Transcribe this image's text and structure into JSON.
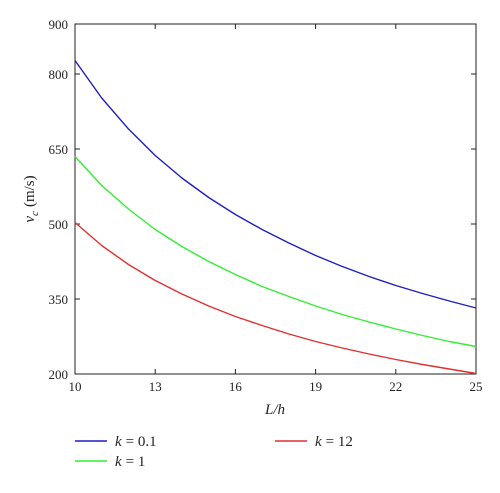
{
  "chart_data": {
    "type": "line",
    "xlabel": "L/h",
    "ylabel_var": "v",
    "ylabel_sub": "c",
    "ylabel_unit": "(m/s)",
    "xlim": [
      10,
      25
    ],
    "ylim": [
      200,
      900
    ],
    "xticks": [
      10,
      13,
      16,
      19,
      22,
      25
    ],
    "yticks": [
      200,
      350,
      500,
      650,
      800,
      900
    ],
    "grid": false,
    "legend_placement": "bottom",
    "x": [
      10,
      11,
      12,
      13,
      14,
      15,
      16,
      17,
      18,
      19,
      20,
      21,
      22,
      23,
      24,
      25
    ],
    "series": [
      {
        "name": "k = 0.1",
        "legend_var": "k",
        "legend_value": "= 0.1",
        "color": "#1f1fbf",
        "values": [
          827,
          752,
          690,
          637,
          592,
          553,
          519,
          489,
          462,
          437,
          415,
          395,
          377,
          361,
          346,
          332
        ]
      },
      {
        "name": "k = 1",
        "legend_var": "k",
        "legend_value": "= 1",
        "color": "#33ee33",
        "values": [
          635,
          577,
          530,
          489,
          455,
          425,
          399,
          375,
          355,
          336,
          319,
          304,
          290,
          277,
          265,
          255
        ]
      },
      {
        "name": "k = 12",
        "legend_var": "k",
        "legend_value": "= 12",
        "color": "#e03030",
        "values": [
          503,
          457,
          419,
          387,
          360,
          336,
          315,
          297,
          280,
          265,
          252,
          240,
          229,
          219,
          210,
          201
        ]
      }
    ]
  }
}
